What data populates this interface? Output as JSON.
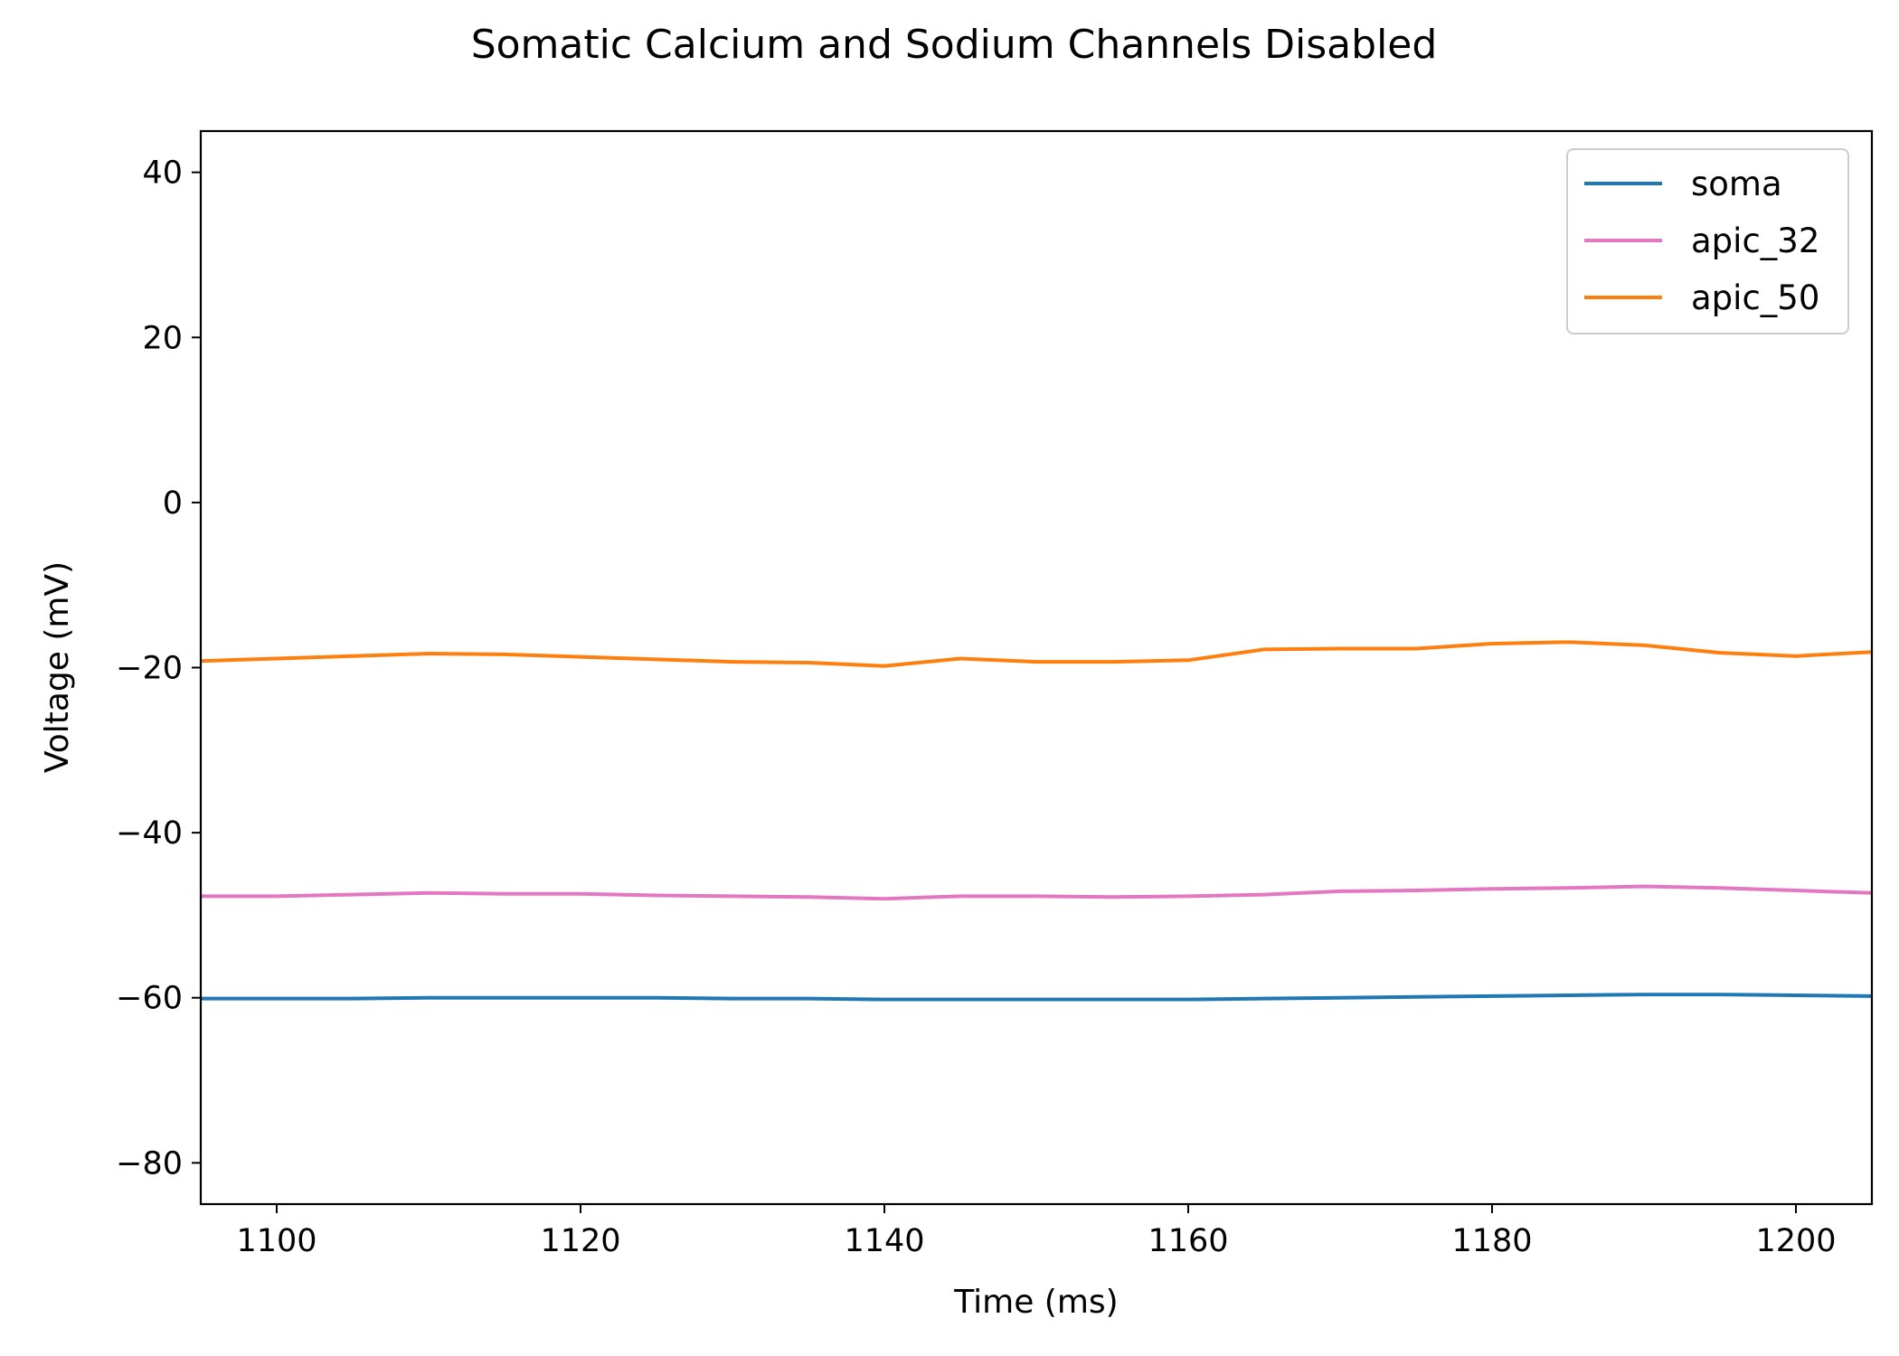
{
  "chart_data": {
    "type": "line",
    "title": "Somatic Calcium and Sodium Channels Disabled",
    "xlabel": "Time (ms)",
    "ylabel": "Voltage (mV)",
    "xlim": [
      1095,
      1205
    ],
    "ylim": [
      -85,
      45
    ],
    "xticks": [
      1100,
      1120,
      1140,
      1160,
      1180,
      1200
    ],
    "yticks": [
      40,
      20,
      0,
      -20,
      -40,
      -60,
      -80
    ],
    "xtick_labels": [
      "1100",
      "1120",
      "1140",
      "1160",
      "1180",
      "1200"
    ],
    "ytick_labels": [
      "40",
      "20",
      "0",
      "−20",
      "−40",
      "−60",
      "−80"
    ],
    "grid": false,
    "legend_position": "top-right",
    "x": [
      1095,
      1100,
      1105,
      1110,
      1115,
      1120,
      1125,
      1130,
      1135,
      1140,
      1145,
      1150,
      1155,
      1160,
      1165,
      1170,
      1175,
      1180,
      1185,
      1190,
      1195,
      1200,
      1205
    ],
    "series": [
      {
        "name": "soma",
        "color": "#1f77b4",
        "values": [
          -60.1,
          -60.1,
          -60.1,
          -60.0,
          -60.0,
          -60.0,
          -60.0,
          -60.1,
          -60.1,
          -60.2,
          -60.2,
          -60.2,
          -60.2,
          -60.2,
          -60.1,
          -60.0,
          -59.9,
          -59.8,
          -59.7,
          -59.6,
          -59.6,
          -59.7,
          -59.8
        ]
      },
      {
        "name": "apic_32",
        "color": "#e377c2",
        "values": [
          -47.7,
          -47.7,
          -47.5,
          -47.3,
          -47.4,
          -47.4,
          -47.6,
          -47.7,
          -47.8,
          -48.0,
          -47.7,
          -47.7,
          -47.8,
          -47.7,
          -47.5,
          -47.1,
          -47.0,
          -46.8,
          -46.7,
          -46.5,
          -46.7,
          -47.0,
          -47.3
        ]
      },
      {
        "name": "apic_50",
        "color": "#ff7f0e",
        "values": [
          -19.2,
          -18.9,
          -18.6,
          -18.3,
          -18.4,
          -18.7,
          -19.0,
          -19.3,
          -19.4,
          -19.8,
          -18.9,
          -19.3,
          -19.3,
          -19.1,
          -17.8,
          -17.7,
          -17.7,
          -17.1,
          -16.9,
          -17.3,
          -18.2,
          -18.6,
          -18.1
        ]
      }
    ]
  }
}
